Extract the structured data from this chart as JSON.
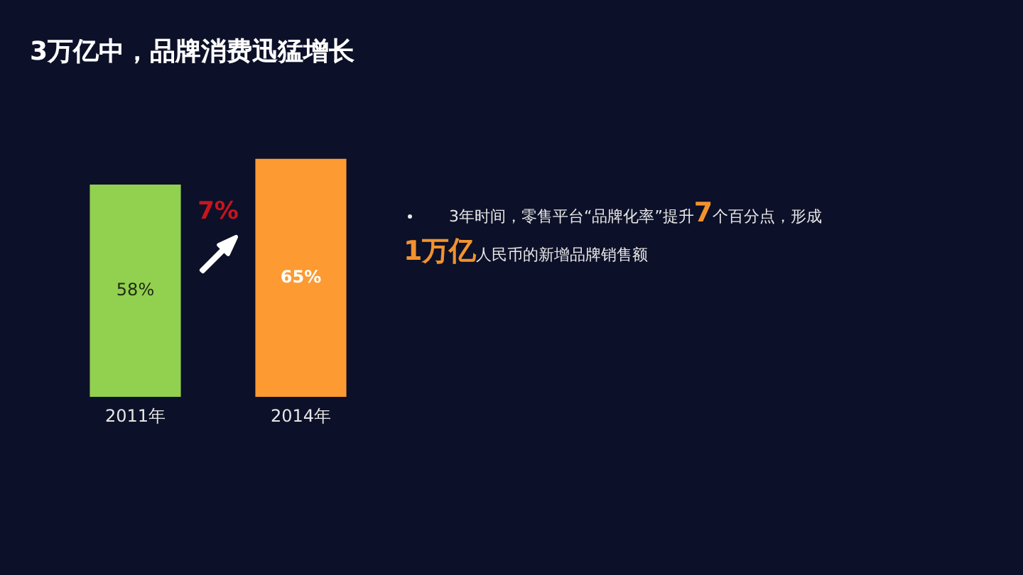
{
  "chart_data": {
    "type": "bar",
    "title": "3万亿中，品牌消费迅猛增长",
    "categories": [
      "2011年",
      "2014年"
    ],
    "values": [
      58,
      65
    ],
    "colors": [
      "#92d050",
      "#fd9a32"
    ],
    "value_labels": [
      "58%",
      "65%"
    ],
    "tick_labels": "x",
    "annotations": [
      "7%",
      "3年时间，零售平台“品牌化率”提升",
      "7",
      "个百分点，形成",
      "1万亿",
      "人民币的新增品牌销售额"
    ]
  }
}
